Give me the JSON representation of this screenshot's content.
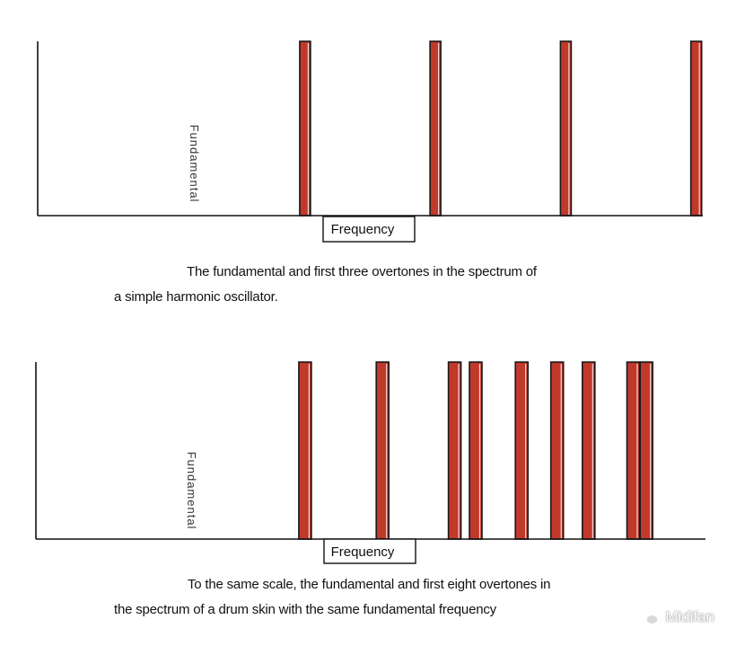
{
  "charts": [
    {
      "id": "top",
      "type": "bar",
      "xlabel": "Frequency",
      "ylabel": "Fundamental",
      "x": [
        1,
        2,
        3,
        4
      ],
      "values": [
        1,
        1,
        1,
        1
      ],
      "xlim": [
        -1.05,
        4.05
      ],
      "ylim": [
        0,
        1
      ],
      "caption": {
        "line1": "The fundamental and first three overtones in the spectrum of",
        "line2": "a simple harmonic oscillator."
      }
    },
    {
      "id": "bottom",
      "type": "bar",
      "xlabel": "Frequency",
      "ylabel": "Fundamental",
      "x": [
        1,
        1.59,
        2.14,
        2.3,
        2.65,
        2.92,
        3.16,
        3.5,
        3.6
      ],
      "values": [
        1,
        1,
        1,
        1,
        1,
        1,
        1,
        1,
        1
      ],
      "xlim": [
        -1.05,
        4.05
      ],
      "ylim": [
        0,
        1
      ],
      "caption": {
        "line1": "To the same scale, the fundamental and first eight overtones in",
        "line2": "the spectrum of a drum skin with the same fundamental frequency"
      }
    }
  ],
  "chart_data": [
    {
      "type": "bar",
      "title": "The fundamental and first three overtones in the spectrum of a simple harmonic oscillator.",
      "xlabel": "Frequency",
      "ylabel": "Fundamental",
      "x": [
        1,
        2,
        3,
        4
      ],
      "values": [
        1,
        1,
        1,
        1
      ],
      "ylim": [
        0,
        1
      ]
    },
    {
      "type": "bar",
      "title": "To the same scale, the fundamental and first eight overtones in the spectrum of a drum skin with the same fundamental frequency",
      "xlabel": "Frequency",
      "ylabel": "Fundamental",
      "x": [
        1,
        1.59,
        2.14,
        2.3,
        2.65,
        2.92,
        3.16,
        3.5,
        3.6
      ],
      "values": [
        1,
        1,
        1,
        1,
        1,
        1,
        1,
        1,
        1
      ],
      "ylim": [
        0,
        1
      ]
    }
  ],
  "style": {
    "bar_color": "#c0392b",
    "bar_outline": "#1a1a1a",
    "axis_color": "#111111"
  },
  "watermark": {
    "icon": "wechat-icon",
    "text": "Midifan"
  }
}
